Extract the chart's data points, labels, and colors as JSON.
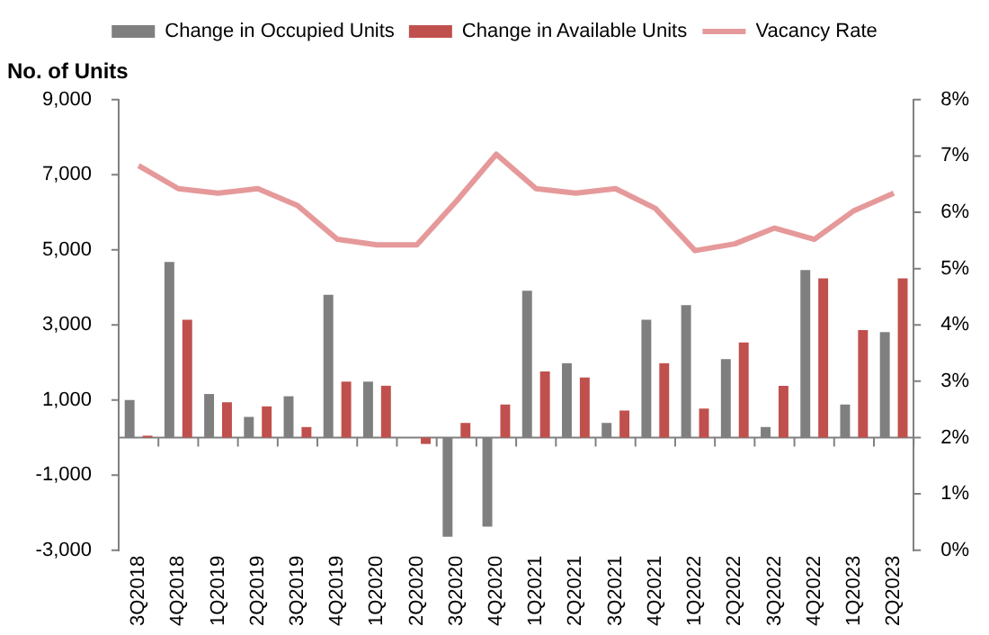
{
  "chart_data": {
    "type": "bar",
    "ylabel": "No. of Units",
    "legend": "top",
    "categories": [
      "3Q2018",
      "4Q2018",
      "1Q2019",
      "2Q2019",
      "3Q2019",
      "4Q2019",
      "1Q2020",
      "2Q2020",
      "3Q2020",
      "4Q2020",
      "1Q2021",
      "2Q2021",
      "3Q2021",
      "4Q2021",
      "1Q2022",
      "2Q2022",
      "3Q2022",
      "4Q2022",
      "1Q2023",
      "2Q2023"
    ],
    "ylim": [
      -3000,
      9000
    ],
    "yticks": [
      {
        "value": -3000,
        "label": "-3,000"
      },
      {
        "value": -1000,
        "label": "-1,000"
      },
      {
        "value": 1000,
        "label": "1,000"
      },
      {
        "value": 3000,
        "label": "3,000"
      },
      {
        "value": 5000,
        "label": "5,000"
      },
      {
        "value": 7000,
        "label": "7,000"
      },
      {
        "value": 9000,
        "label": "9,000"
      }
    ],
    "y2lim": [
      0,
      8
    ],
    "y2ticks": [
      {
        "value": 0,
        "label": "0%"
      },
      {
        "value": 1,
        "label": "1%"
      },
      {
        "value": 2,
        "label": "2%"
      },
      {
        "value": 3,
        "label": "3%"
      },
      {
        "value": 4,
        "label": "4%"
      },
      {
        "value": 5,
        "label": "5%"
      },
      {
        "value": 6,
        "label": "6%"
      },
      {
        "value": 7,
        "label": "7%"
      },
      {
        "value": 8,
        "label": "8%"
      }
    ],
    "series": [
      {
        "name": "Change in Occupied Units",
        "color": "#7f7f7f",
        "values": [
          1000,
          4680,
          1160,
          550,
          1100,
          3800,
          1490,
          0,
          -2640,
          -2370,
          3910,
          1980,
          390,
          3140,
          3530,
          2090,
          280,
          4460,
          880,
          2810
        ]
      },
      {
        "name": "Change in Available Units",
        "color": "#c0504d",
        "values": [
          50,
          3140,
          940,
          830,
          280,
          1490,
          1380,
          -170,
          390,
          880,
          1760,
          1600,
          720,
          1980,
          770,
          2530,
          1380,
          4240,
          2860,
          4240
        ]
      },
      {
        "name": "Vacancy Rate",
        "type": "line",
        "axis": "y2",
        "color": "#e6999a",
        "marker": "none",
        "line_style": "solid",
        "values": [
          6.83,
          6.42,
          6.34,
          6.42,
          6.12,
          5.52,
          5.42,
          5.42,
          6.2,
          7.03,
          6.42,
          6.34,
          6.42,
          6.07,
          5.32,
          5.44,
          5.72,
          5.52,
          6.03,
          6.34
        ]
      }
    ]
  }
}
